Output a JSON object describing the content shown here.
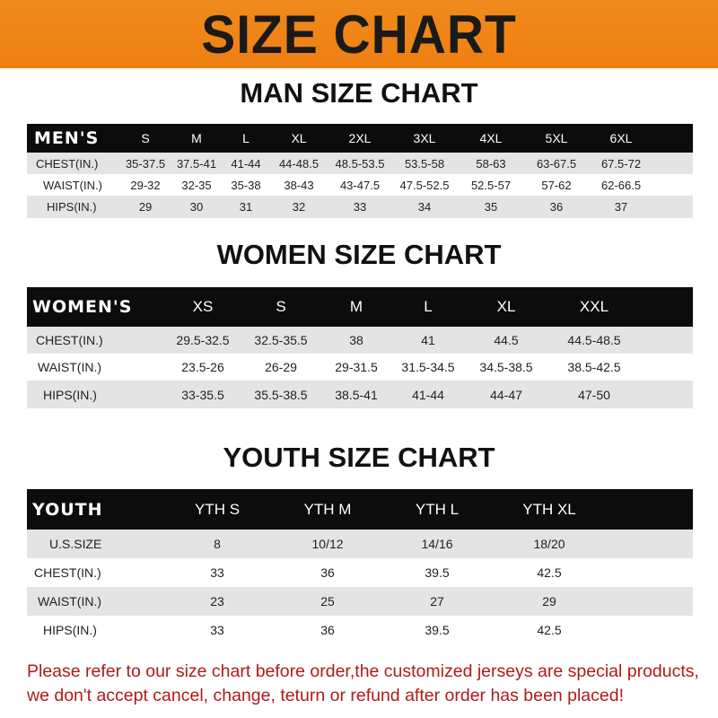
{
  "title": "SIZE CHART",
  "men": {
    "heading": "MAN SIZE CHART",
    "label": "MEN'S",
    "sizes": [
      "S",
      "M",
      "L",
      "XL",
      "2XL",
      "3XL",
      "4XL",
      "5XL",
      "6XL"
    ],
    "rows": [
      {
        "label": "CHEST(IN.)",
        "values": [
          "35-37.5",
          "37.5-41",
          "41-44",
          "44-48.5",
          "48.5-53.5",
          "53.5-58",
          "58-63",
          "63-67.5",
          "67.5-72"
        ]
      },
      {
        "label": "WAIST(IN.)",
        "values": [
          "29-32",
          "32-35",
          "35-38",
          "38-43",
          "43-47.5",
          "47.5-52.5",
          "52.5-57",
          "57-62",
          "62-66.5"
        ]
      },
      {
        "label": "HIPS(IN.)",
        "values": [
          "29",
          "30",
          "31",
          "32",
          "33",
          "34",
          "35",
          "36",
          "37"
        ]
      }
    ]
  },
  "women": {
    "heading": "WOMEN SIZE CHART",
    "label": "WOMEN'S",
    "sizes": [
      "XS",
      "S",
      "M",
      "L",
      "XL",
      "XXL"
    ],
    "rows": [
      {
        "label": "CHEST(IN.)",
        "values": [
          "29.5-32.5",
          "32.5-35.5",
          "38",
          "41",
          "44.5",
          "44.5-48.5"
        ]
      },
      {
        "label": "WAIST(IN.)",
        "values": [
          "23.5-26",
          "26-29",
          "29-31.5",
          "31.5-34.5",
          "34.5-38.5",
          "38.5-42.5"
        ]
      },
      {
        "label": "HIPS(IN.)",
        "values": [
          "33-35.5",
          "35.5-38.5",
          "38.5-41",
          "41-44",
          "44-47",
          "47-50"
        ]
      }
    ]
  },
  "youth": {
    "heading": "YOUTH SIZE CHART",
    "label": "YOUTH",
    "sizes": [
      "YTH S",
      "YTH M",
      "YTH L",
      "YTH XL"
    ],
    "rows": [
      {
        "label": "U.S.SIZE",
        "values": [
          "8",
          "10/12",
          "14/16",
          "18/20"
        ]
      },
      {
        "label": "CHEST(IN.)",
        "values": [
          "33",
          "36",
          "39.5",
          "42.5"
        ]
      },
      {
        "label": "WAIST(IN.)",
        "values": [
          "23",
          "25",
          "27",
          "29"
        ]
      },
      {
        "label": "HIPS(IN.)",
        "values": [
          "33",
          "36",
          "39.5",
          "42.5"
        ]
      }
    ]
  },
  "note": "Please refer to our size chart before order,the customized jerseys are special products, we don't accept cancel, change, teturn or refund after order has been placed!",
  "colors": {
    "banner": "#ef8216",
    "header_row": "#0c0c0c",
    "stripe": "#e4e4e4",
    "note": "#b01a1a"
  }
}
